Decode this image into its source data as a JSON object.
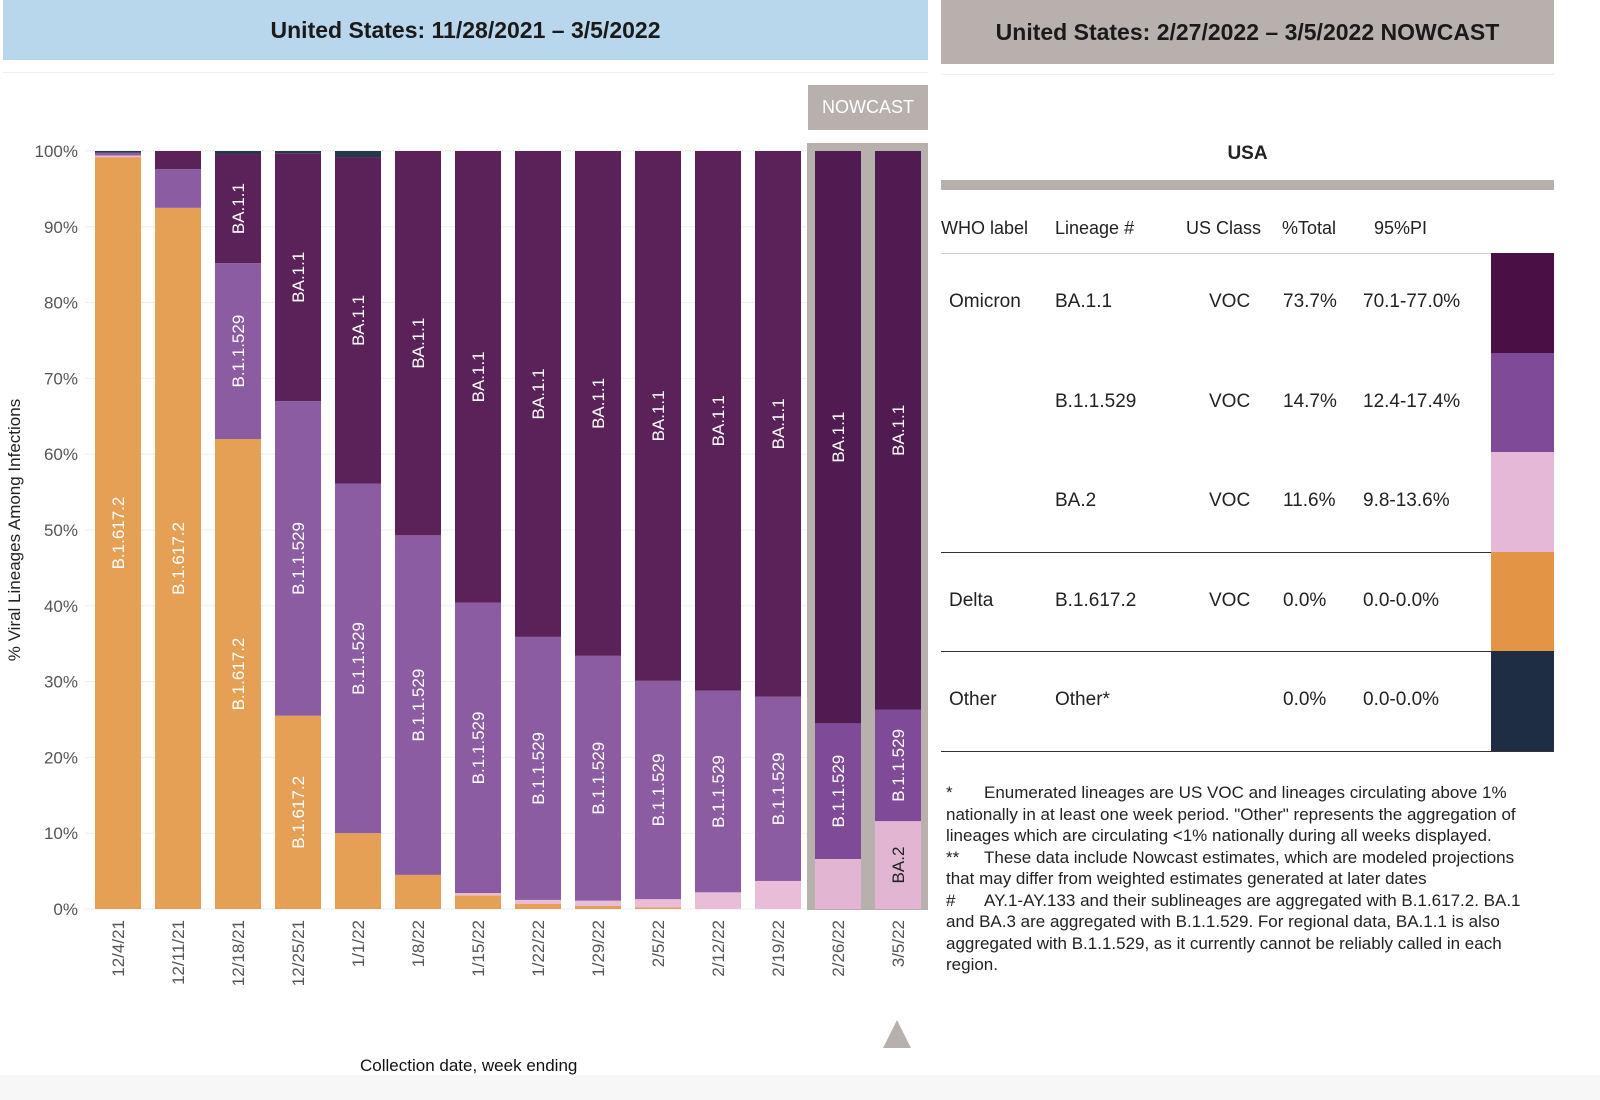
{
  "header": {
    "left_title": "United States: 11/28/2021 – 3/5/2022",
    "right_title": "United States: 2/27/2022 – 3/5/2022 NOWCAST",
    "nowcast_tag": "NOWCAST"
  },
  "chart_data": {
    "type": "bar",
    "stacked": true,
    "title": "United States: 11/28/2021 – 3/5/2022",
    "xlabel": "Collection date, week ending",
    "ylabel": "% Viral Lineages Among Infections",
    "ylim": [
      0,
      100
    ],
    "yticks": [
      "0%",
      "10%",
      "20%",
      "30%",
      "40%",
      "50%",
      "60%",
      "70%",
      "80%",
      "90%",
      "100%"
    ],
    "grid": true,
    "categories": [
      "12/4/21",
      "12/11/21",
      "12/18/21",
      "12/25/21",
      "1/1/22",
      "1/8/22",
      "1/15/22",
      "1/22/22",
      "1/29/22",
      "2/5/22",
      "2/12/22",
      "2/19/22",
      "2/26/22",
      "3/5/22"
    ],
    "nowcast_categories": [
      "2/26/22",
      "3/5/22"
    ],
    "series": [
      {
        "name": "B.1.617.2",
        "color": "#e6a055",
        "values": [
          99.2,
          92.5,
          62.0,
          25.5,
          10.0,
          4.5,
          1.8,
          0.7,
          0.4,
          0.2,
          0.0,
          0.0,
          0.0,
          0.0
        ]
      },
      {
        "name": "BA.2",
        "color": "#e9bcd8",
        "values": [
          0.2,
          0.0,
          0.0,
          0.0,
          0.0,
          0.0,
          0.3,
          0.5,
          0.7,
          1.1,
          2.2,
          3.7,
          6.6,
          11.6
        ]
      },
      {
        "name": "B.1.1.529",
        "color": "#8c5ca2",
        "values": [
          0.4,
          5.1,
          23.2,
          41.5,
          46.1,
          44.8,
          38.3,
          34.7,
          32.3,
          28.8,
          26.6,
          24.3,
          17.9,
          14.7
        ]
      },
      {
        "name": "BA.1.1",
        "color": "#5a2259",
        "values": [
          0.0,
          2.4,
          14.4,
          32.7,
          43.1,
          50.7,
          59.6,
          64.1,
          66.6,
          69.9,
          71.2,
          72.0,
          75.5,
          73.7
        ]
      },
      {
        "name": "Other",
        "color": "#243a4a",
        "values": [
          0.2,
          0.0,
          0.4,
          0.3,
          0.8,
          0.0,
          0.0,
          0.0,
          0.0,
          0.0,
          0.0,
          0.0,
          0.0,
          0.0
        ]
      }
    ],
    "segment_labels": [
      [
        "B.1.617.2",
        null,
        null,
        null,
        null
      ],
      [
        "B.1.617.2",
        null,
        null,
        null,
        null
      ],
      [
        "B.1.617.2",
        null,
        "B.1.1.529",
        "BA.1.1",
        null
      ],
      [
        "B.1.617.2",
        null,
        "B.1.1.529",
        "BA.1.1",
        null
      ],
      [
        null,
        null,
        "B.1.1.529",
        "BA.1.1",
        null
      ],
      [
        null,
        null,
        "B.1.1.529",
        "BA.1.1",
        null
      ],
      [
        null,
        null,
        "B.1.1.529",
        "BA.1.1",
        null
      ],
      [
        null,
        null,
        "B.1.1.529",
        "BA.1.1",
        null
      ],
      [
        null,
        null,
        "B.1.1.529",
        "BA.1.1",
        null
      ],
      [
        null,
        null,
        "B.1.1.529",
        "BA.1.1",
        null
      ],
      [
        null,
        null,
        "B.1.1.529",
        "BA.1.1",
        null
      ],
      [
        null,
        null,
        "B.1.1.529",
        "BA.1.1",
        null
      ],
      [
        null,
        null,
        "B.1.1.529",
        "BA.1.1",
        null
      ],
      [
        null,
        "BA.2",
        "B.1.1.529",
        "BA.1.1",
        null
      ]
    ]
  },
  "table": {
    "region": "USA",
    "headers": [
      "WHO label",
      "Lineage #",
      "US Class",
      "%Total",
      "95%PI"
    ],
    "rows": [
      {
        "who": "Omicron",
        "lineage": "BA.1.1",
        "class": "VOC",
        "total": "73.7%",
        "pi": "70.1-77.0%",
        "color": "#4a0f45"
      },
      {
        "who": "",
        "lineage": "B.1.1.529",
        "class": "VOC",
        "total": "14.7%",
        "pi": "12.4-17.4%",
        "color": "#7f4a98"
      },
      {
        "who": "",
        "lineage": "BA.2",
        "class": "VOC",
        "total": "11.6%",
        "pi": "9.8-13.6%",
        "color": "#e6b8d8"
      },
      {
        "who": "Delta",
        "lineage": "B.1.617.2",
        "class": "VOC",
        "total": "0.0%",
        "pi": "0.0-0.0%",
        "color": "#e39444"
      },
      {
        "who": "Other",
        "lineage": "Other*",
        "class": "",
        "total": "0.0%",
        "pi": "0.0-0.0%",
        "color": "#1e2d44"
      }
    ]
  },
  "notes": [
    {
      "mark": "*",
      "text": "Enumerated lineages are US VOC and lineages circulating above 1% nationally in at least one week period. \"Other\" represents the aggregation of lineages which are circulating <1% nationally during all weeks displayed."
    },
    {
      "mark": "**",
      "text": "These data include Nowcast estimates, which are modeled projections that may differ from weighted estimates generated at later dates"
    },
    {
      "mark": "#",
      "text": "AY.1-AY.133 and their sublineages are aggregated with B.1.617.2. BA.1 and BA.3 are aggregated with B.1.1.529. For regional data, BA.1.1 is also aggregated with B.1.1.529, as it currently cannot be reliably called in each region."
    }
  ],
  "colors": {
    "header_left_bg": "#b8d6ec",
    "header_right_bg": "#b8b0ad",
    "nowcast_bg": "#b8b0ad"
  }
}
